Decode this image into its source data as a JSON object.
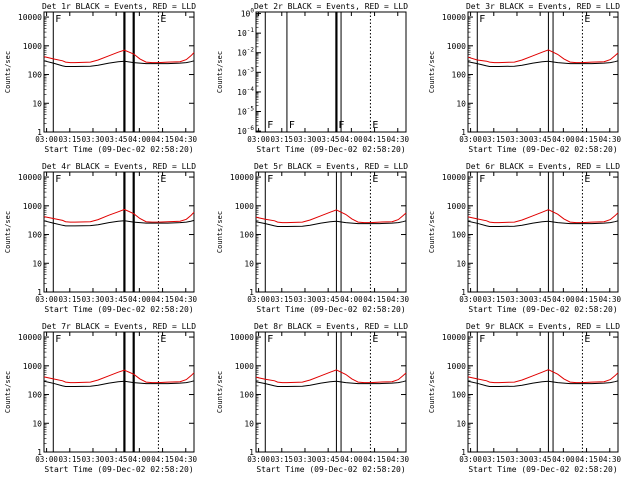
{
  "chart_data": [
    {
      "type": "line",
      "title": "Det 1r  BLACK = Events, RED = LLD",
      "xlabel": "Start Time (09-Dec-02 02:58:20)",
      "ylabel": "Counts/sec",
      "x_ticks": [
        "03:00",
        "03:15",
        "03:30",
        "03:45",
        "04:00",
        "04:15",
        "04:30"
      ],
      "y_ticks": [
        "1",
        "10",
        "100",
        "1000",
        "10000"
      ],
      "yscale": "log",
      "ylim": [
        1,
        15000
      ],
      "xlim_minutes": [
        0,
        97
      ],
      "x_minutes": [
        0,
        6,
        12,
        14,
        17,
        20,
        30,
        35,
        42,
        48,
        52,
        58,
        62,
        66,
        70,
        74,
        80,
        88,
        92,
        95,
        97
      ],
      "series": [
        {
          "name": "LLD",
          "color": "#e00000",
          "values": [
            420,
            350,
            300,
            270,
            260,
            260,
            270,
            320,
            450,
            600,
            700,
            520,
            350,
            270,
            260,
            260,
            270,
            280,
            330,
            450,
            580
          ]
        },
        {
          "name": "Events",
          "color": "#000000",
          "values": [
            300,
            250,
            200,
            190,
            190,
            190,
            195,
            210,
            250,
            280,
            290,
            260,
            250,
            240,
            240,
            240,
            240,
            250,
            260,
            280,
            300
          ]
        }
      ],
      "markers": [
        {
          "x": 6,
          "label": "F",
          "style": "solid",
          "thick": false
        },
        {
          "x": 52,
          "label": "",
          "style": "solid",
          "thick": true
        },
        {
          "x": 58,
          "label": "",
          "style": "solid",
          "thick": true
        },
        {
          "x": 74,
          "label": "E",
          "style": "dotted",
          "thick": false
        }
      ]
    },
    {
      "type": "line",
      "title": "Det 2r  BLACK = Events, RED = LLD",
      "xlabel": "Start Time (09-Dec-02 02:58:20)",
      "ylabel": "Counts/sec",
      "x_ticks": [
        "03:00",
        "03:15",
        "03:30",
        "03:45",
        "04:00",
        "04:15",
        "04:30"
      ],
      "y_ticks": [
        "10^0",
        "10^-1",
        "10^-2",
        "10^-3",
        "10^-4",
        "10^-5",
        "10^-6"
      ],
      "yscale": "log",
      "ylim": [
        9e-07,
        1.2
      ],
      "xlim_minutes": [
        0,
        97
      ],
      "x_minutes": [],
      "series": [],
      "markers": [
        {
          "x": 6,
          "label": "F",
          "style": "solid",
          "thick": false
        },
        {
          "x": 20,
          "label": "F",
          "style": "solid",
          "thick": false
        },
        {
          "x": 52,
          "label": "F",
          "style": "solid",
          "thick": true
        },
        {
          "x": 55,
          "label": "",
          "style": "solid",
          "thick": false
        },
        {
          "x": 74,
          "label": "E",
          "style": "dotted",
          "thick": false
        }
      ]
    },
    {
      "type": "line",
      "title": "Det 3r  BLACK = Events, RED = LLD",
      "xlabel": "Start Time (09-Dec-02 02:58:20)",
      "ylabel": "Counts/sec",
      "x_ticks": [
        "03:00",
        "03:15",
        "03:30",
        "03:45",
        "04:00",
        "04:15",
        "04:30"
      ],
      "y_ticks": [
        "1",
        "10",
        "100",
        "1000",
        "10000"
      ],
      "yscale": "log",
      "ylim": [
        1,
        15000
      ],
      "xlim_minutes": [
        0,
        97
      ],
      "x_minutes": [
        0,
        6,
        12,
        14,
        17,
        20,
        30,
        35,
        42,
        48,
        52,
        58,
        62,
        66,
        70,
        74,
        80,
        88,
        92,
        95,
        97
      ],
      "series": [
        {
          "name": "LLD",
          "color": "#e00000",
          "values": [
            400,
            320,
            290,
            270,
            260,
            260,
            270,
            320,
            450,
            600,
            720,
            500,
            350,
            270,
            260,
            260,
            270,
            280,
            330,
            450,
            560
          ]
        },
        {
          "name": "Events",
          "color": "#000000",
          "values": [
            280,
            240,
            200,
            190,
            190,
            190,
            195,
            210,
            250,
            280,
            290,
            260,
            250,
            240,
            240,
            240,
            240,
            250,
            260,
            280,
            300
          ]
        }
      ],
      "markers": [
        {
          "x": 6,
          "label": "F",
          "style": "solid",
          "thick": false
        },
        {
          "x": 52,
          "label": "",
          "style": "solid",
          "thick": false
        },
        {
          "x": 55,
          "label": "",
          "style": "solid",
          "thick": false
        },
        {
          "x": 74,
          "label": "E",
          "style": "dotted",
          "thick": false
        }
      ]
    },
    {
      "type": "line",
      "title": "Det 4r  BLACK = Events, RED = LLD",
      "xlabel": "Start Time (09-Dec-02 02:58:20)",
      "ylabel": "Counts/sec",
      "x_ticks": [
        "03:00",
        "03:15",
        "03:30",
        "03:45",
        "04:00",
        "04:15",
        "04:30"
      ],
      "y_ticks": [
        "1",
        "10",
        "100",
        "1000",
        "10000"
      ],
      "yscale": "log",
      "ylim": [
        1,
        15000
      ],
      "xlim_minutes": [
        0,
        97
      ],
      "x_minutes": [
        0,
        6,
        12,
        14,
        17,
        20,
        30,
        35,
        42,
        48,
        52,
        58,
        62,
        66,
        70,
        74,
        80,
        88,
        92,
        95,
        97
      ],
      "series": [
        {
          "name": "LLD",
          "color": "#e00000",
          "values": [
            420,
            360,
            310,
            280,
            270,
            270,
            280,
            330,
            470,
            620,
            750,
            530,
            360,
            280,
            270,
            270,
            280,
            290,
            340,
            460,
            600
          ]
        },
        {
          "name": "Events",
          "color": "#000000",
          "values": [
            300,
            250,
            210,
            200,
            200,
            200,
            205,
            220,
            260,
            290,
            300,
            270,
            260,
            250,
            250,
            250,
            250,
            260,
            270,
            290,
            310
          ]
        }
      ],
      "markers": [
        {
          "x": 6,
          "label": "F",
          "style": "solid",
          "thick": false
        },
        {
          "x": 52,
          "label": "",
          "style": "solid",
          "thick": true
        },
        {
          "x": 58,
          "label": "",
          "style": "solid",
          "thick": true
        },
        {
          "x": 74,
          "label": "E",
          "style": "dotted",
          "thick": false
        }
      ]
    },
    {
      "type": "line",
      "title": "Det 5r  BLACK = Events, RED = LLD",
      "xlabel": "Start Time (09-Dec-02 02:58:20)",
      "ylabel": "Counts/sec",
      "x_ticks": [
        "03:00",
        "03:15",
        "03:30",
        "03:45",
        "04:00",
        "04:15",
        "04:30"
      ],
      "y_ticks": [
        "1",
        "10",
        "100",
        "1000",
        "10000"
      ],
      "yscale": "log",
      "ylim": [
        1,
        15000
      ],
      "xlim_minutes": [
        0,
        97
      ],
      "x_minutes": [
        0,
        6,
        12,
        14,
        17,
        20,
        30,
        35,
        42,
        48,
        52,
        58,
        62,
        66,
        70,
        74,
        80,
        88,
        92,
        95,
        97
      ],
      "series": [
        {
          "name": "LLD",
          "color": "#e00000",
          "values": [
            400,
            340,
            300,
            270,
            260,
            260,
            270,
            320,
            450,
            600,
            720,
            500,
            350,
            270,
            260,
            260,
            270,
            280,
            330,
            450,
            560
          ]
        },
        {
          "name": "Events",
          "color": "#000000",
          "values": [
            280,
            240,
            200,
            190,
            190,
            190,
            195,
            210,
            250,
            280,
            290,
            260,
            250,
            240,
            240,
            240,
            240,
            250,
            260,
            280,
            300
          ]
        }
      ],
      "markers": [
        {
          "x": 6,
          "label": "F",
          "style": "solid",
          "thick": false
        },
        {
          "x": 52,
          "label": "",
          "style": "solid",
          "thick": false
        },
        {
          "x": 55,
          "label": "",
          "style": "solid",
          "thick": false
        },
        {
          "x": 74,
          "label": "E",
          "style": "dotted",
          "thick": false
        }
      ]
    },
    {
      "type": "line",
      "title": "Det 6r  BLACK = Events, RED = LLD",
      "xlabel": "Start Time (09-Dec-02 02:58:20)",
      "ylabel": "Counts/sec",
      "x_ticks": [
        "03:00",
        "03:15",
        "03:30",
        "03:45",
        "04:00",
        "04:15",
        "04:30"
      ],
      "y_ticks": [
        "1",
        "10",
        "100",
        "1000",
        "10000"
      ],
      "yscale": "log",
      "ylim": [
        1,
        15000
      ],
      "xlim_minutes": [
        0,
        97
      ],
      "x_minutes": [
        0,
        6,
        12,
        14,
        17,
        20,
        30,
        35,
        42,
        48,
        52,
        58,
        62,
        66,
        70,
        74,
        80,
        88,
        92,
        95,
        97
      ],
      "series": [
        {
          "name": "LLD",
          "color": "#e00000",
          "values": [
            410,
            350,
            300,
            270,
            260,
            260,
            270,
            320,
            450,
            600,
            730,
            510,
            350,
            270,
            260,
            260,
            270,
            280,
            330,
            450,
            570
          ]
        },
        {
          "name": "Events",
          "color": "#000000",
          "values": [
            290,
            245,
            200,
            190,
            190,
            190,
            195,
            210,
            250,
            280,
            290,
            260,
            250,
            240,
            240,
            240,
            240,
            250,
            260,
            280,
            300
          ]
        }
      ],
      "markers": [
        {
          "x": 6,
          "label": "F",
          "style": "solid",
          "thick": false
        },
        {
          "x": 52,
          "label": "",
          "style": "solid",
          "thick": false
        },
        {
          "x": 55,
          "label": "",
          "style": "solid",
          "thick": false
        },
        {
          "x": 74,
          "label": "E",
          "style": "dotted",
          "thick": false
        }
      ]
    },
    {
      "type": "line",
      "title": "Det 7r  BLACK = Events, RED = LLD",
      "xlabel": "Start Time (09-Dec-02 02:58:20)",
      "ylabel": "Counts/sec",
      "x_ticks": [
        "03:00",
        "03:15",
        "03:30",
        "03:45",
        "04:00",
        "04:15",
        "04:30"
      ],
      "y_ticks": [
        "1",
        "10",
        "100",
        "1000",
        "10000"
      ],
      "yscale": "log",
      "ylim": [
        1,
        15000
      ],
      "xlim_minutes": [
        0,
        97
      ],
      "x_minutes": [
        0,
        6,
        12,
        14,
        17,
        20,
        30,
        35,
        42,
        48,
        52,
        58,
        62,
        66,
        70,
        74,
        80,
        88,
        92,
        95,
        97
      ],
      "series": [
        {
          "name": "LLD",
          "color": "#e00000",
          "values": [
            410,
            350,
            300,
            270,
            260,
            260,
            270,
            320,
            450,
            600,
            700,
            510,
            350,
            270,
            260,
            260,
            270,
            280,
            330,
            450,
            570
          ]
        },
        {
          "name": "Events",
          "color": "#000000",
          "values": [
            290,
            245,
            200,
            190,
            190,
            190,
            195,
            210,
            250,
            280,
            290,
            260,
            250,
            240,
            240,
            240,
            240,
            250,
            260,
            280,
            300
          ]
        }
      ],
      "markers": [
        {
          "x": 6,
          "label": "F",
          "style": "solid",
          "thick": false
        },
        {
          "x": 52,
          "label": "",
          "style": "solid",
          "thick": true
        },
        {
          "x": 58,
          "label": "",
          "style": "solid",
          "thick": true
        },
        {
          "x": 74,
          "label": "E",
          "style": "dotted",
          "thick": false
        }
      ]
    },
    {
      "type": "line",
      "title": "Det 8r  BLACK = Events, RED = LLD",
      "xlabel": "Start Time (09-Dec-02 02:58:20)",
      "ylabel": "Counts/sec",
      "x_ticks": [
        "03:00",
        "03:15",
        "03:30",
        "03:45",
        "04:00",
        "04:15",
        "04:30"
      ],
      "y_ticks": [
        "1",
        "10",
        "100",
        "1000",
        "10000"
      ],
      "yscale": "log",
      "ylim": [
        1,
        15000
      ],
      "xlim_minutes": [
        0,
        97
      ],
      "x_minutes": [
        0,
        6,
        12,
        14,
        17,
        20,
        30,
        35,
        42,
        48,
        52,
        58,
        62,
        66,
        70,
        74,
        80,
        88,
        92,
        95,
        97
      ],
      "series": [
        {
          "name": "LLD",
          "color": "#e00000",
          "values": [
            400,
            340,
            300,
            270,
            260,
            260,
            270,
            320,
            450,
            600,
            720,
            500,
            350,
            270,
            260,
            260,
            270,
            280,
            330,
            450,
            560
          ]
        },
        {
          "name": "Events",
          "color": "#000000",
          "values": [
            280,
            240,
            200,
            190,
            190,
            190,
            195,
            210,
            250,
            280,
            290,
            260,
            250,
            240,
            240,
            240,
            240,
            250,
            260,
            280,
            300
          ]
        }
      ],
      "markers": [
        {
          "x": 6,
          "label": "F",
          "style": "solid",
          "thick": false
        },
        {
          "x": 52,
          "label": "",
          "style": "solid",
          "thick": false
        },
        {
          "x": 55,
          "label": "",
          "style": "solid",
          "thick": false
        },
        {
          "x": 74,
          "label": "E",
          "style": "dotted",
          "thick": false
        }
      ]
    },
    {
      "type": "line",
      "title": "Det 9r  BLACK = Events, RED = LLD",
      "xlabel": "Start Time (09-Dec-02 02:58:20)",
      "ylabel": "Counts/sec",
      "x_ticks": [
        "03:00",
        "03:15",
        "03:30",
        "03:45",
        "04:00",
        "04:15",
        "04:30"
      ],
      "y_ticks": [
        "1",
        "10",
        "100",
        "1000",
        "10000"
      ],
      "yscale": "log",
      "ylim": [
        1,
        15000
      ],
      "xlim_minutes": [
        0,
        97
      ],
      "x_minutes": [
        0,
        6,
        12,
        14,
        17,
        20,
        30,
        35,
        42,
        48,
        52,
        58,
        62,
        66,
        70,
        74,
        80,
        88,
        92,
        95,
        97
      ],
      "series": [
        {
          "name": "LLD",
          "color": "#e00000",
          "values": [
            410,
            350,
            300,
            270,
            260,
            260,
            270,
            320,
            450,
            600,
            730,
            510,
            350,
            270,
            260,
            260,
            270,
            280,
            330,
            450,
            570
          ]
        },
        {
          "name": "Events",
          "color": "#000000",
          "values": [
            290,
            245,
            200,
            190,
            190,
            190,
            195,
            210,
            250,
            280,
            290,
            260,
            250,
            240,
            240,
            240,
            240,
            250,
            260,
            280,
            300
          ]
        }
      ],
      "markers": [
        {
          "x": 6,
          "label": "F",
          "style": "solid",
          "thick": false
        },
        {
          "x": 52,
          "label": "",
          "style": "solid",
          "thick": false
        },
        {
          "x": 55,
          "label": "",
          "style": "solid",
          "thick": false
        },
        {
          "x": 74,
          "label": "E",
          "style": "dotted",
          "thick": false
        }
      ]
    }
  ]
}
